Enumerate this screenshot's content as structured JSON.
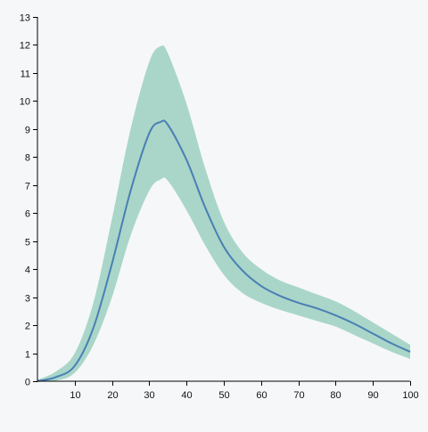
{
  "chart_data": {
    "type": "area",
    "title": "",
    "xlabel": "",
    "ylabel": "",
    "xlim": [
      0,
      100
    ],
    "ylim": [
      0,
      13
    ],
    "grid": false,
    "x_ticks": [
      10,
      20,
      30,
      40,
      50,
      60,
      70,
      80,
      90,
      100
    ],
    "y_ticks": [
      0,
      1,
      2,
      3,
      4,
      5,
      6,
      7,
      8,
      9,
      10,
      11,
      12,
      13
    ],
    "colors": {
      "line": "#4a7fb5",
      "band": "#a9d6c8",
      "axis": "#000000"
    },
    "x": [
      0,
      5,
      10,
      15,
      20,
      25,
      30,
      33,
      35,
      40,
      45,
      50,
      55,
      60,
      65,
      70,
      75,
      80,
      85,
      90,
      95,
      100
    ],
    "mean": [
      0.0,
      0.15,
      0.55,
      1.9,
      4.2,
      6.8,
      8.85,
      9.25,
      9.15,
      7.9,
      6.2,
      4.8,
      3.95,
      3.4,
      3.05,
      2.8,
      2.6,
      2.35,
      2.05,
      1.7,
      1.35,
      1.05
    ],
    "upper": [
      0.05,
      0.35,
      1.0,
      2.8,
      5.8,
      9.0,
      11.4,
      11.95,
      11.7,
      9.9,
      7.6,
      5.7,
      4.6,
      4.0,
      3.6,
      3.35,
      3.1,
      2.85,
      2.5,
      2.1,
      1.7,
      1.3
    ],
    "lower": [
      0.0,
      0.02,
      0.3,
      1.3,
      3.0,
      5.2,
      6.8,
      7.2,
      7.15,
      6.1,
      4.85,
      3.8,
      3.15,
      2.8,
      2.55,
      2.35,
      2.15,
      1.95,
      1.65,
      1.35,
      1.05,
      0.8
    ]
  }
}
